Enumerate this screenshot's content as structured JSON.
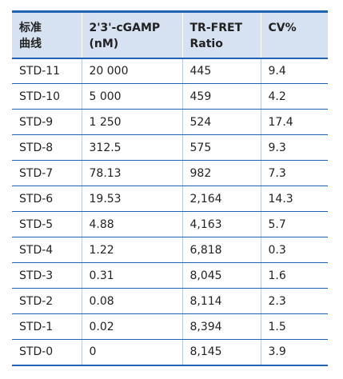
{
  "table": {
    "headers": [
      "标准\n曲线",
      "2'3'-cGAMP\n(nM)",
      "TR-FRET\nRatio",
      "CV%"
    ],
    "rows": [
      [
        "STD-11",
        "20 000",
        "445",
        "9.4"
      ],
      [
        "STD-10",
        "5 000",
        "459",
        "4.2"
      ],
      [
        "STD-9",
        "1 250",
        "524",
        "17.4"
      ],
      [
        "STD-8",
        "312.5",
        "575",
        "9.3"
      ],
      [
        "STD-7",
        "78.13",
        "982",
        "7.3"
      ],
      [
        "STD-6",
        "19.53",
        "2,164",
        "14.3"
      ],
      [
        "STD-5",
        "4.88",
        "4,163",
        "5.7"
      ],
      [
        "STD-4",
        "1.22",
        "6,818",
        "0.3"
      ],
      [
        "STD-3",
        "0.31",
        "8,045",
        "1.6"
      ],
      [
        "STD-2",
        "0.08",
        "8,114",
        "2.3"
      ],
      [
        "STD-1",
        "0.02",
        "8,394",
        "1.5"
      ],
      [
        "STD-0",
        "0",
        "8,145",
        "3.9"
      ]
    ]
  },
  "colors": {
    "header_bg": "#d6e2f1",
    "rule": "#1f63b4"
  }
}
